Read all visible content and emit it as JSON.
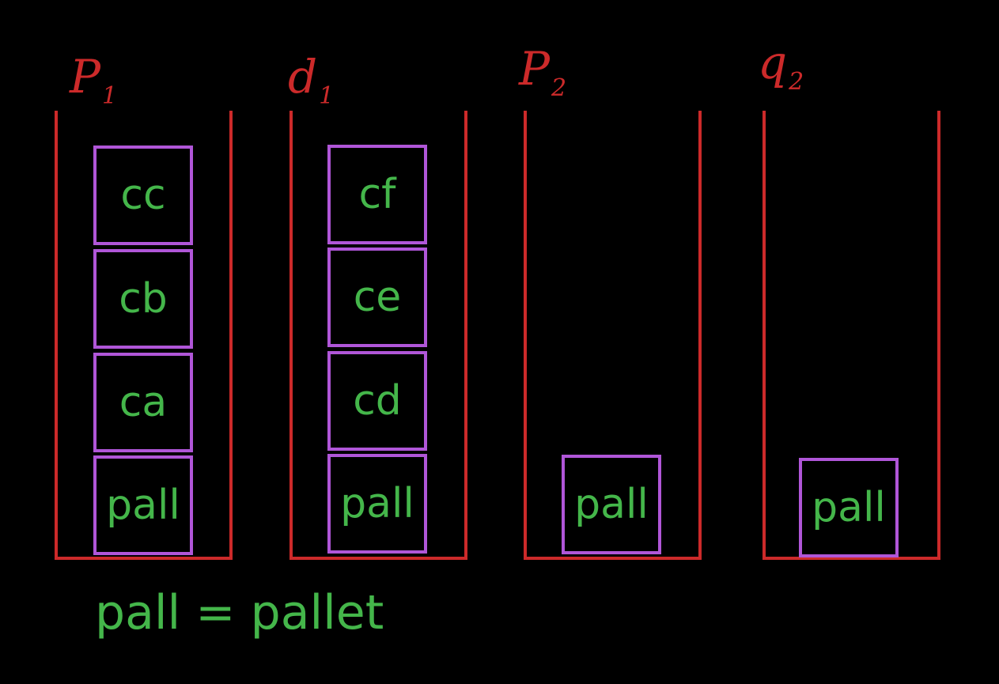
{
  "stacks": [
    {
      "title": "P",
      "sub": "1",
      "boxes": [
        "cc",
        "cb",
        "ca",
        "pall"
      ]
    },
    {
      "title": "d",
      "sub": "1",
      "boxes": [
        "cf",
        "ce",
        "cd",
        "pall"
      ]
    },
    {
      "title": "P",
      "sub": "2",
      "boxes": [
        "pall"
      ]
    },
    {
      "title": "q",
      "sub": "2",
      "boxes": [
        "pall"
      ]
    }
  ],
  "legend": "pall = pallet",
  "colors": {
    "container": "#cc2a2a",
    "box_border": "#b056d8",
    "box_text": "#44b64a",
    "background": "#000000"
  }
}
